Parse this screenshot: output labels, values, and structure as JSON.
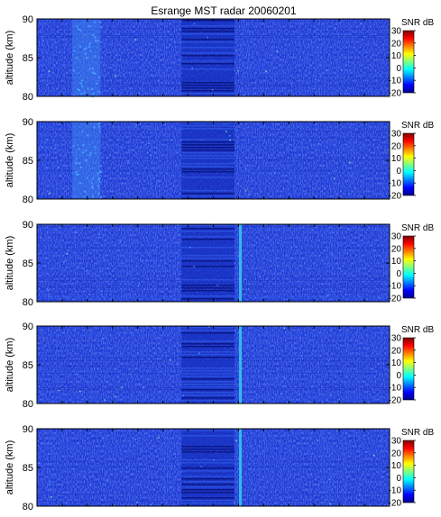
{
  "chart_data": {
    "type": "heatmap",
    "title": "Esrange MST radar 20060201",
    "panels": [
      {
        "id": 1,
        "ylabel": "altitude (km)",
        "ylim": [
          80,
          90
        ],
        "yticks": [
          90,
          85,
          80
        ],
        "dense_column": false
      },
      {
        "id": 2,
        "ylabel": "altitude (km)",
        "ylim": [
          80,
          90
        ],
        "yticks": [
          90,
          85,
          80
        ],
        "dense_column": false
      },
      {
        "id": 3,
        "ylabel": "altitude (km)",
        "ylim": [
          80,
          90
        ],
        "yticks": [
          90,
          85,
          80
        ],
        "dense_column": true
      },
      {
        "id": 4,
        "ylabel": "altitude (km)",
        "ylim": [
          80,
          90
        ],
        "yticks": [
          90,
          85,
          80
        ],
        "dense_column": true
      },
      {
        "id": 5,
        "ylabel": "altitude (km)",
        "ylim": [
          80,
          90
        ],
        "yticks": [
          90,
          85,
          80
        ],
        "dense_column": true
      }
    ],
    "colorbar": {
      "label": "SNR dB",
      "range": [
        -20,
        30
      ],
      "ticks": [
        30,
        20,
        10,
        0,
        -10,
        -20
      ],
      "colormap": [
        "#00008f",
        "#0000ff",
        "#0080ff",
        "#00ffff",
        "#80ff80",
        "#ffff00",
        "#ff8000",
        "#ff0000",
        "#800000"
      ]
    },
    "grid": true,
    "background_snr_db": -12
  }
}
